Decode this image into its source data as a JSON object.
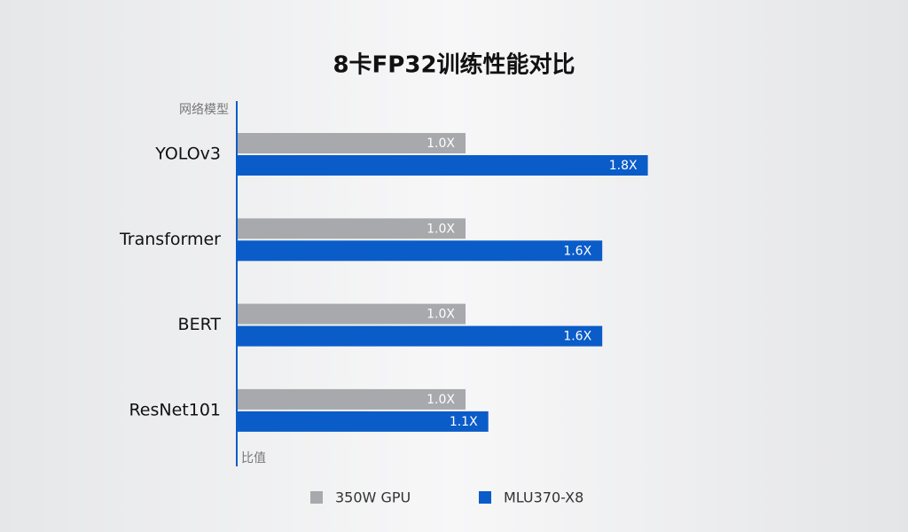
{
  "chart_data": {
    "type": "hbar",
    "title": "8卡FP32训练性能对比",
    "y_label": "网络模型",
    "x_label": "比值",
    "categories": [
      "YOLOv3",
      "Transformer",
      "BERT",
      "ResNet101"
    ],
    "series": [
      {
        "name": "350W GPU",
        "color": "#a7a9ac",
        "values": [
          1.0,
          1.0,
          1.0,
          1.0
        ],
        "value_labels": [
          "1.0X",
          "1.0X",
          "1.0X",
          "1.0X"
        ]
      },
      {
        "name": "MLU370-X8",
        "color": "#0a5cc8",
        "values": [
          1.8,
          1.6,
          1.6,
          1.1
        ],
        "value_labels": [
          "1.8X",
          "1.6X",
          "1.6X",
          "1.1X"
        ]
      }
    ],
    "xlim": [
      0,
      2
    ]
  }
}
